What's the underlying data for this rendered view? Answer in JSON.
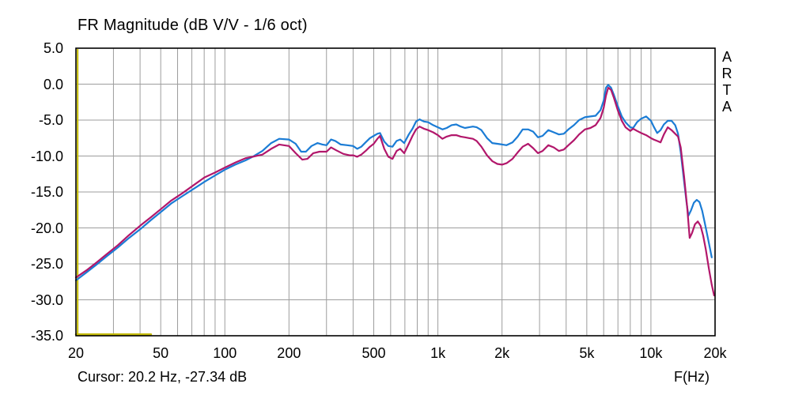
{
  "header": {
    "title": "FR Magnitude (dB V/V - 1/6 oct)"
  },
  "watermark": {
    "letters": [
      "A",
      "R",
      "T",
      "A"
    ]
  },
  "footer": {
    "cursor_readout": "Cursor: 20.2 Hz, -27.34 dB",
    "x_axis_label": "F(Hz)"
  },
  "colors": {
    "background": "#ffffff",
    "border": "#000000",
    "grid": "#9d9d9d",
    "curve_blue": "#1b7cd5",
    "curve_magenta": "#b2176b",
    "overlay_yellow": "#c3ba00",
    "text": "#000000"
  },
  "chart_data": {
    "type": "line",
    "title": "FR Magnitude (dB V/V - 1/6 oct)",
    "xlabel": "F(Hz)",
    "ylabel": "dB V/V",
    "x_scale": "log",
    "xlim": [
      20,
      20000
    ],
    "ylim": [
      -35,
      5
    ],
    "grid": true,
    "legend_position": "none",
    "y_ticks": [
      5,
      0,
      -5,
      -10,
      -15,
      -20,
      -25,
      -30,
      -35
    ],
    "y_tick_labels": [
      "5.0",
      "0.0",
      "-5.0",
      "-10.0",
      "-15.0",
      "-20.0",
      "-25.0",
      "-30.0",
      "-35.0"
    ],
    "x_ticks": [
      20,
      50,
      100,
      200,
      500,
      1000,
      2000,
      5000,
      10000,
      20000
    ],
    "x_tick_labels": [
      "20",
      "50",
      "100",
      "200",
      "500",
      "1k",
      "2k",
      "5k",
      "10k",
      "20k"
    ],
    "x_gridlines": [
      20,
      30,
      40,
      50,
      60,
      70,
      80,
      90,
      100,
      200,
      300,
      400,
      500,
      600,
      700,
      800,
      900,
      1000,
      2000,
      3000,
      4000,
      5000,
      6000,
      7000,
      8000,
      9000,
      10000,
      20000
    ],
    "cursor": {
      "freq_hz": 20.2,
      "db": -27.34
    },
    "series": [
      {
        "name": "fr-curve-blue",
        "color": "#1b7cd5",
        "points": [
          [
            20,
            -27.3
          ],
          [
            22.4,
            -26.2
          ],
          [
            25,
            -25.1
          ],
          [
            28,
            -23.9
          ],
          [
            31.5,
            -22.7
          ],
          [
            35.5,
            -21.4
          ],
          [
            40,
            -20.2
          ],
          [
            45,
            -18.9
          ],
          [
            50,
            -17.8
          ],
          [
            56,
            -16.6
          ],
          [
            63,
            -15.6
          ],
          [
            71,
            -14.6
          ],
          [
            80,
            -13.6
          ],
          [
            90,
            -12.7
          ],
          [
            100,
            -11.9
          ],
          [
            112,
            -11.2
          ],
          [
            125,
            -10.6
          ],
          [
            135,
            -10.1
          ],
          [
            150,
            -9.3
          ],
          [
            165,
            -8.2
          ],
          [
            180,
            -7.6
          ],
          [
            200,
            -7.7
          ],
          [
            215,
            -8.3
          ],
          [
            228,
            -9.4
          ],
          [
            240,
            -9.4
          ],
          [
            255,
            -8.6
          ],
          [
            272,
            -8.2
          ],
          [
            287,
            -8.4
          ],
          [
            300,
            -8.5
          ],
          [
            315,
            -7.7
          ],
          [
            330,
            -7.9
          ],
          [
            350,
            -8.4
          ],
          [
            375,
            -8.5
          ],
          [
            400,
            -8.6
          ],
          [
            418,
            -9.0
          ],
          [
            437,
            -8.7
          ],
          [
            458,
            -8.1
          ],
          [
            480,
            -7.5
          ],
          [
            500,
            -7.2
          ],
          [
            520,
            -6.9
          ],
          [
            535,
            -6.8
          ],
          [
            560,
            -8.0
          ],
          [
            585,
            -8.6
          ],
          [
            612,
            -8.7
          ],
          [
            640,
            -7.9
          ],
          [
            665,
            -7.7
          ],
          [
            695,
            -8.2
          ],
          [
            730,
            -7.0
          ],
          [
            760,
            -6.2
          ],
          [
            790,
            -5.2
          ],
          [
            820,
            -4.9
          ],
          [
            860,
            -5.2
          ],
          [
            900,
            -5.3
          ],
          [
            950,
            -5.7
          ],
          [
            1000,
            -6.0
          ],
          [
            1050,
            -6.3
          ],
          [
            1100,
            -6.1
          ],
          [
            1160,
            -5.7
          ],
          [
            1220,
            -5.6
          ],
          [
            1280,
            -5.9
          ],
          [
            1340,
            -6.1
          ],
          [
            1400,
            -6.0
          ],
          [
            1460,
            -5.9
          ],
          [
            1520,
            -6.0
          ],
          [
            1600,
            -6.4
          ],
          [
            1700,
            -7.5
          ],
          [
            1800,
            -8.2
          ],
          [
            1900,
            -8.3
          ],
          [
            2000,
            -8.4
          ],
          [
            2100,
            -8.5
          ],
          [
            2240,
            -8.1
          ],
          [
            2370,
            -7.3
          ],
          [
            2500,
            -6.3
          ],
          [
            2650,
            -6.3
          ],
          [
            2800,
            -6.6
          ],
          [
            2950,
            -7.4
          ],
          [
            3100,
            -7.2
          ],
          [
            3300,
            -6.4
          ],
          [
            3500,
            -6.7
          ],
          [
            3700,
            -7.0
          ],
          [
            3900,
            -6.9
          ],
          [
            4100,
            -6.3
          ],
          [
            4350,
            -5.7
          ],
          [
            4600,
            -5.0
          ],
          [
            4900,
            -4.6
          ],
          [
            5200,
            -4.5
          ],
          [
            5500,
            -4.4
          ],
          [
            5800,
            -3.6
          ],
          [
            6000,
            -2.3
          ],
          [
            6150,
            -0.5
          ],
          [
            6300,
            -0.1
          ],
          [
            6500,
            -0.5
          ],
          [
            6700,
            -1.5
          ],
          [
            7000,
            -3.1
          ],
          [
            7300,
            -4.5
          ],
          [
            7600,
            -5.3
          ],
          [
            8000,
            -6.0
          ],
          [
            8250,
            -6.1
          ],
          [
            8600,
            -5.3
          ],
          [
            9000,
            -4.8
          ],
          [
            9500,
            -4.5
          ],
          [
            10000,
            -5.1
          ],
          [
            10300,
            -5.9
          ],
          [
            10700,
            -6.8
          ],
          [
            11100,
            -6.4
          ],
          [
            11500,
            -5.6
          ],
          [
            12000,
            -5.1
          ],
          [
            12500,
            -5.1
          ],
          [
            13000,
            -5.7
          ],
          [
            13400,
            -6.9
          ],
          [
            13800,
            -9.5
          ],
          [
            14300,
            -13.5
          ],
          [
            14700,
            -16.5
          ],
          [
            15000,
            -18.3
          ],
          [
            15400,
            -17.6
          ],
          [
            15900,
            -16.5
          ],
          [
            16400,
            -16.1
          ],
          [
            16900,
            -16.4
          ],
          [
            17400,
            -17.6
          ],
          [
            17900,
            -19.3
          ],
          [
            18500,
            -21.4
          ],
          [
            19000,
            -23.1
          ],
          [
            19300,
            -24.1
          ]
        ]
      },
      {
        "name": "fr-curve-magenta",
        "color": "#b2176b",
        "points": [
          [
            20,
            -26.9
          ],
          [
            22.4,
            -25.9
          ],
          [
            25,
            -24.8
          ],
          [
            28,
            -23.6
          ],
          [
            31.5,
            -22.4
          ],
          [
            35.5,
            -21.0
          ],
          [
            40,
            -19.7
          ],
          [
            45,
            -18.5
          ],
          [
            50,
            -17.4
          ],
          [
            56,
            -16.2
          ],
          [
            63,
            -15.2
          ],
          [
            71,
            -14.1
          ],
          [
            80,
            -13.0
          ],
          [
            90,
            -12.3
          ],
          [
            100,
            -11.6
          ],
          [
            112,
            -10.9
          ],
          [
            125,
            -10.3
          ],
          [
            135,
            -10.1
          ],
          [
            150,
            -9.8
          ],
          [
            165,
            -9.0
          ],
          [
            180,
            -8.4
          ],
          [
            200,
            -8.6
          ],
          [
            215,
            -9.6
          ],
          [
            231,
            -10.5
          ],
          [
            244,
            -10.4
          ],
          [
            260,
            -9.6
          ],
          [
            278,
            -9.4
          ],
          [
            290,
            -9.4
          ],
          [
            300,
            -9.4
          ],
          [
            315,
            -8.8
          ],
          [
            333,
            -9.2
          ],
          [
            360,
            -9.7
          ],
          [
            385,
            -9.9
          ],
          [
            400,
            -9.9
          ],
          [
            418,
            -10.1
          ],
          [
            437,
            -9.8
          ],
          [
            458,
            -9.3
          ],
          [
            480,
            -8.7
          ],
          [
            500,
            -8.3
          ],
          [
            520,
            -7.6
          ],
          [
            535,
            -7.2
          ],
          [
            560,
            -9.0
          ],
          [
            585,
            -10.1
          ],
          [
            612,
            -10.4
          ],
          [
            640,
            -9.3
          ],
          [
            665,
            -9.0
          ],
          [
            695,
            -9.6
          ],
          [
            730,
            -8.3
          ],
          [
            760,
            -7.2
          ],
          [
            790,
            -6.3
          ],
          [
            820,
            -5.9
          ],
          [
            860,
            -6.2
          ],
          [
            900,
            -6.4
          ],
          [
            950,
            -6.7
          ],
          [
            1000,
            -7.1
          ],
          [
            1050,
            -7.6
          ],
          [
            1100,
            -7.3
          ],
          [
            1160,
            -7.1
          ],
          [
            1220,
            -7.1
          ],
          [
            1280,
            -7.3
          ],
          [
            1340,
            -7.4
          ],
          [
            1400,
            -7.5
          ],
          [
            1460,
            -7.6
          ],
          [
            1520,
            -7.9
          ],
          [
            1600,
            -8.7
          ],
          [
            1700,
            -9.9
          ],
          [
            1800,
            -10.7
          ],
          [
            1900,
            -11.1
          ],
          [
            2000,
            -11.2
          ],
          [
            2100,
            -11.0
          ],
          [
            2240,
            -10.4
          ],
          [
            2370,
            -9.5
          ],
          [
            2500,
            -8.7
          ],
          [
            2650,
            -8.3
          ],
          [
            2800,
            -8.9
          ],
          [
            2950,
            -9.6
          ],
          [
            3100,
            -9.3
          ],
          [
            3300,
            -8.5
          ],
          [
            3500,
            -8.8
          ],
          [
            3700,
            -9.3
          ],
          [
            3900,
            -9.1
          ],
          [
            4100,
            -8.5
          ],
          [
            4350,
            -7.8
          ],
          [
            4600,
            -7.0
          ],
          [
            4900,
            -6.3
          ],
          [
            5200,
            -6.1
          ],
          [
            5500,
            -5.7
          ],
          [
            5800,
            -4.7
          ],
          [
            6000,
            -3.3
          ],
          [
            6150,
            -1.6
          ],
          [
            6300,
            -0.5
          ],
          [
            6500,
            -0.8
          ],
          [
            6700,
            -1.9
          ],
          [
            7000,
            -3.7
          ],
          [
            7300,
            -5.1
          ],
          [
            7600,
            -6.0
          ],
          [
            8000,
            -6.5
          ],
          [
            8250,
            -6.2
          ],
          [
            8600,
            -6.5
          ],
          [
            9000,
            -6.8
          ],
          [
            9500,
            -7.1
          ],
          [
            10000,
            -7.5
          ],
          [
            10300,
            -7.7
          ],
          [
            10700,
            -7.9
          ],
          [
            11100,
            -8.1
          ],
          [
            11500,
            -7.0
          ],
          [
            12000,
            -6.0
          ],
          [
            12500,
            -6.4
          ],
          [
            13000,
            -6.9
          ],
          [
            13400,
            -7.3
          ],
          [
            13800,
            -8.8
          ],
          [
            14300,
            -12.8
          ],
          [
            14800,
            -17.2
          ],
          [
            15200,
            -21.4
          ],
          [
            15600,
            -20.7
          ],
          [
            16100,
            -19.5
          ],
          [
            16600,
            -19.1
          ],
          [
            17100,
            -19.7
          ],
          [
            17600,
            -21.1
          ],
          [
            18100,
            -23.0
          ],
          [
            18700,
            -25.6
          ],
          [
            19300,
            -27.9
          ],
          [
            19800,
            -29.4
          ]
        ]
      },
      {
        "name": "overlay-yellow-segment",
        "color": "#c3ba00",
        "points": [
          [
            20,
            -34.8
          ],
          [
            45,
            -34.8
          ]
        ]
      }
    ]
  }
}
